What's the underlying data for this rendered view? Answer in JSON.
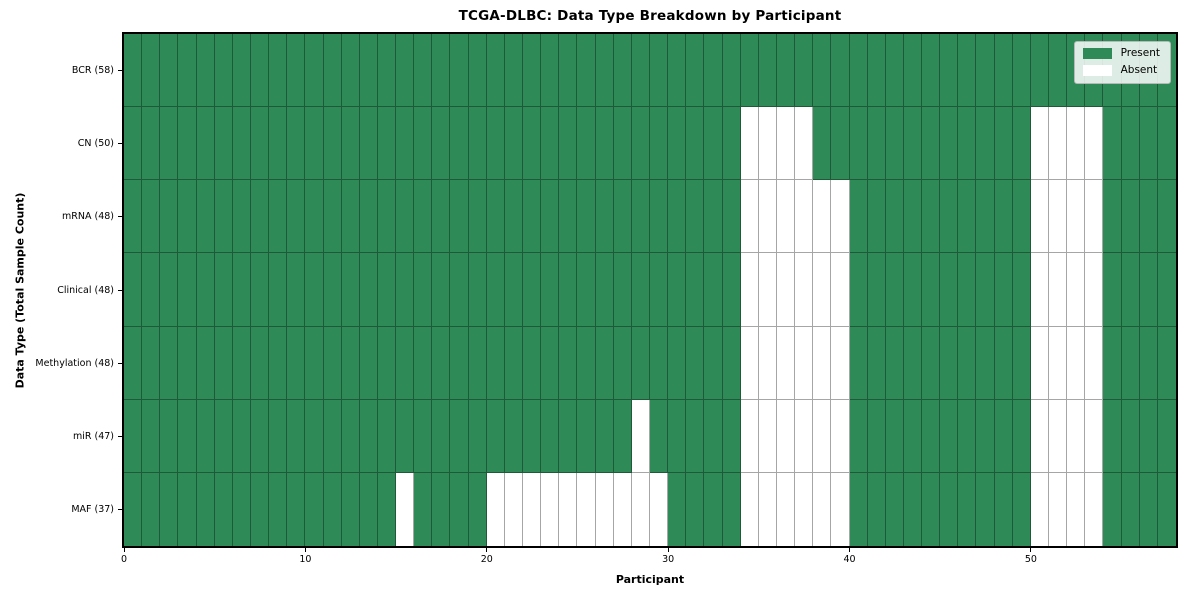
{
  "colors": {
    "present": "#2e8b57",
    "absent": "#ffffff",
    "grid_line": "rgba(0,0,0,0.35)",
    "spine": "#000000",
    "legend_bg": "rgba(255,255,255,0.84)",
    "legend_border": "#b8b8b8",
    "background": "#ffffff"
  },
  "chart_data": {
    "type": "heatmap",
    "title": "TCGA-DLBC: Data Type Breakdown by Participant",
    "xlabel": "Participant",
    "ylabel": "Data Type (Total Sample Count)",
    "n_participants": 58,
    "x_ticks": [
      0,
      10,
      20,
      30,
      40,
      50
    ],
    "grid": true,
    "legend_position": "upper right",
    "value_encoding": {
      "present": 1,
      "absent": 0
    },
    "legend": [
      {
        "label": "Present",
        "color": "#2e8b57"
      },
      {
        "label": "Absent",
        "color": "#ffffff"
      }
    ],
    "rows": [
      {
        "label": "BCR (58)",
        "data_type": "BCR",
        "total": 58,
        "absent_participants": []
      },
      {
        "label": "CN (50)",
        "data_type": "CN",
        "total": 50,
        "absent_participants": [
          34,
          35,
          36,
          37,
          50,
          51,
          52,
          53
        ]
      },
      {
        "label": "mRNA (48)",
        "data_type": "mRNA",
        "total": 48,
        "absent_participants": [
          34,
          35,
          36,
          37,
          38,
          39,
          50,
          51,
          52,
          53
        ]
      },
      {
        "label": "Clinical (48)",
        "data_type": "Clinical",
        "total": 48,
        "absent_participants": [
          34,
          35,
          36,
          37,
          38,
          39,
          50,
          51,
          52,
          53
        ]
      },
      {
        "label": "Methylation (48)",
        "data_type": "Methylation",
        "total": 48,
        "absent_participants": [
          34,
          35,
          36,
          37,
          38,
          39,
          50,
          51,
          52,
          53
        ]
      },
      {
        "label": "miR (47)",
        "data_type": "miR",
        "total": 47,
        "absent_participants": [
          28,
          34,
          35,
          36,
          37,
          38,
          39,
          50,
          51,
          52,
          53
        ]
      },
      {
        "label": "MAF (37)",
        "data_type": "MAF",
        "total": 37,
        "absent_participants": [
          15,
          20,
          21,
          22,
          23,
          24,
          25,
          26,
          27,
          28,
          29,
          34,
          35,
          36,
          37,
          38,
          39,
          50,
          51,
          52,
          53
        ]
      }
    ]
  }
}
